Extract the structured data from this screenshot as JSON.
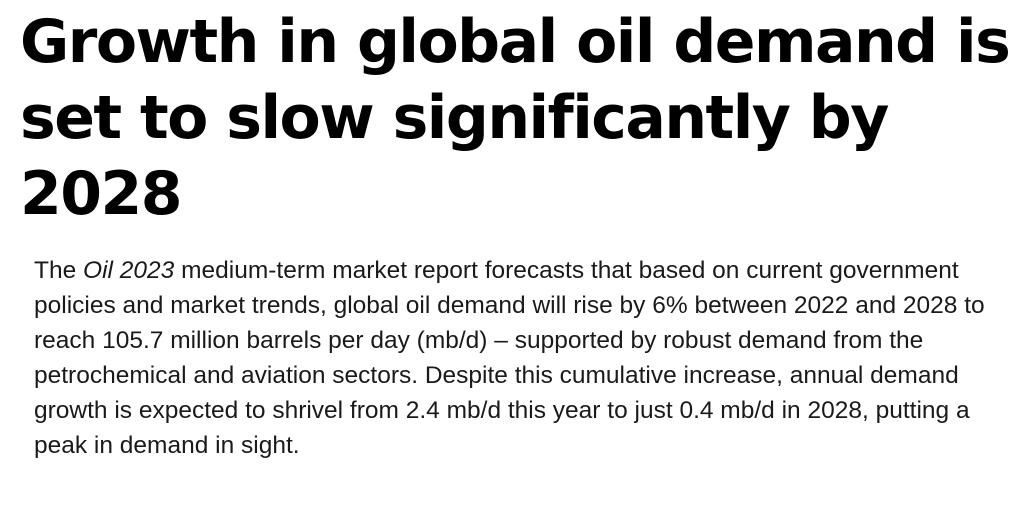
{
  "headline": "Growth in global oil demand is set to slow significantly by 2028",
  "body": {
    "intro": "The ",
    "report_name": "Oil 2023",
    "text": " medium-term market report forecasts that based on current government policies and market trends, global oil demand will rise by 6% between 2022 and 2028 to reach 105.7 million barrels per day (mb/d) – supported by robust demand from the petrochemical and aviation sectors. Despite this cumulative increase, annual demand growth is expected to shrivel from 2.4 mb/d this year to just 0.4 mb/d in 2028, putting a peak in demand in sight."
  }
}
